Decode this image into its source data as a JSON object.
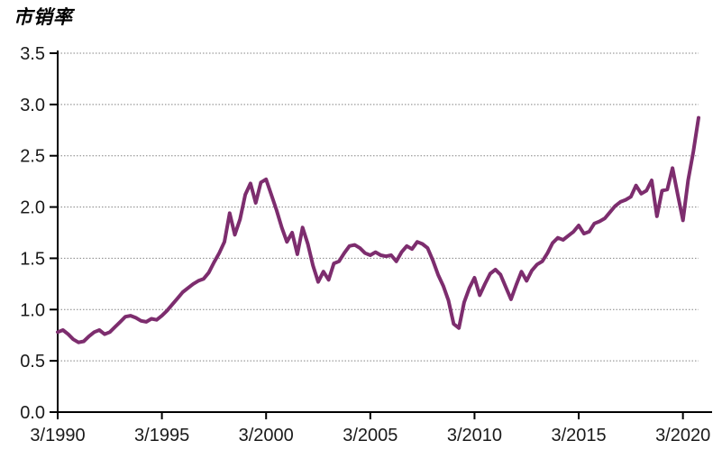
{
  "page": {
    "background": "#ffffff"
  },
  "chart_data": {
    "type": "line",
    "title": "市销率",
    "xlabel": "",
    "ylabel": "",
    "legend": "none",
    "grid": "horizontal-dotted",
    "grid_color": "#848484",
    "axis_color": "#000000",
    "tick_label_color": "#1a1a1a",
    "line_color": "#7D2D6E",
    "line_width": 4,
    "ylim": [
      0.0,
      3.5
    ],
    "yticks": [
      "0.0",
      "0.5",
      "1.0",
      "1.5",
      "2.0",
      "2.5",
      "3.0",
      "3.5"
    ],
    "xticks": [
      "3/1990",
      "3/1995",
      "3/2000",
      "3/2005",
      "3/2010",
      "3/2015",
      "3/2020"
    ],
    "series": [
      {
        "name": "市销率",
        "x": [
          "3/1990",
          "6/1990",
          "9/1990",
          "12/1990",
          "3/1991",
          "6/1991",
          "9/1991",
          "12/1991",
          "3/1992",
          "6/1992",
          "9/1992",
          "12/1992",
          "3/1993",
          "6/1993",
          "9/1993",
          "12/1993",
          "3/1994",
          "6/1994",
          "9/1994",
          "12/1994",
          "3/1995",
          "6/1995",
          "9/1995",
          "12/1995",
          "3/1996",
          "6/1996",
          "9/1996",
          "12/1996",
          "3/1997",
          "6/1997",
          "9/1997",
          "12/1997",
          "3/1998",
          "6/1998",
          "9/1998",
          "12/1998",
          "3/1999",
          "6/1999",
          "9/1999",
          "12/1999",
          "3/2000",
          "6/2000",
          "9/2000",
          "12/2000",
          "3/2001",
          "6/2001",
          "9/2001",
          "12/2001",
          "3/2002",
          "6/2002",
          "9/2002",
          "12/2002",
          "3/2003",
          "6/2003",
          "9/2003",
          "12/2003",
          "3/2004",
          "6/2004",
          "9/2004",
          "12/2004",
          "3/2005",
          "6/2005",
          "9/2005",
          "12/2005",
          "3/2006",
          "6/2006",
          "9/2006",
          "12/2006",
          "3/2007",
          "6/2007",
          "9/2007",
          "12/2007",
          "3/2008",
          "6/2008",
          "9/2008",
          "12/2008",
          "3/2009",
          "6/2009",
          "9/2009",
          "12/2009",
          "3/2010",
          "6/2010",
          "9/2010",
          "12/2010",
          "3/2011",
          "6/2011",
          "9/2011",
          "12/2011",
          "3/2012",
          "6/2012",
          "9/2012",
          "12/2012",
          "3/2013",
          "6/2013",
          "9/2013",
          "12/2013",
          "3/2014",
          "6/2014",
          "9/2014",
          "12/2014",
          "3/2015",
          "6/2015",
          "9/2015",
          "12/2015",
          "3/2016",
          "6/2016",
          "9/2016",
          "12/2016",
          "3/2017",
          "6/2017",
          "9/2017",
          "12/2017",
          "3/2018",
          "6/2018",
          "9/2018",
          "12/2018",
          "3/2019",
          "6/2019",
          "9/2019",
          "12/2019",
          "3/2020",
          "6/2020",
          "9/2020",
          "12/2020"
        ],
        "values": [
          0.78,
          0.8,
          0.76,
          0.71,
          0.68,
          0.69,
          0.74,
          0.78,
          0.8,
          0.76,
          0.78,
          0.83,
          0.88,
          0.93,
          0.94,
          0.92,
          0.89,
          0.88,
          0.91,
          0.9,
          0.94,
          0.99,
          1.05,
          1.11,
          1.17,
          1.21,
          1.25,
          1.28,
          1.3,
          1.36,
          1.46,
          1.55,
          1.66,
          1.94,
          1.73,
          1.88,
          2.12,
          2.23,
          2.04,
          2.24,
          2.27,
          2.12,
          1.97,
          1.8,
          1.66,
          1.75,
          1.54,
          1.8,
          1.64,
          1.43,
          1.27,
          1.37,
          1.29,
          1.45,
          1.47,
          1.55,
          1.62,
          1.63,
          1.6,
          1.55,
          1.53,
          1.56,
          1.53,
          1.52,
          1.53,
          1.47,
          1.56,
          1.62,
          1.59,
          1.66,
          1.64,
          1.6,
          1.48,
          1.34,
          1.23,
          1.09,
          0.86,
          0.82,
          1.07,
          1.21,
          1.31,
          1.14,
          1.25,
          1.35,
          1.39,
          1.34,
          1.22,
          1.1,
          1.24,
          1.37,
          1.28,
          1.38,
          1.44,
          1.47,
          1.55,
          1.65,
          1.7,
          1.68,
          1.72,
          1.76,
          1.82,
          1.74,
          1.76,
          1.84,
          1.86,
          1.89,
          1.95,
          2.01,
          2.05,
          2.07,
          2.1,
          2.21,
          2.13,
          2.16,
          2.26,
          1.91,
          2.16,
          2.17,
          2.38,
          2.12,
          1.87,
          2.26,
          2.54,
          2.87
        ]
      }
    ]
  }
}
